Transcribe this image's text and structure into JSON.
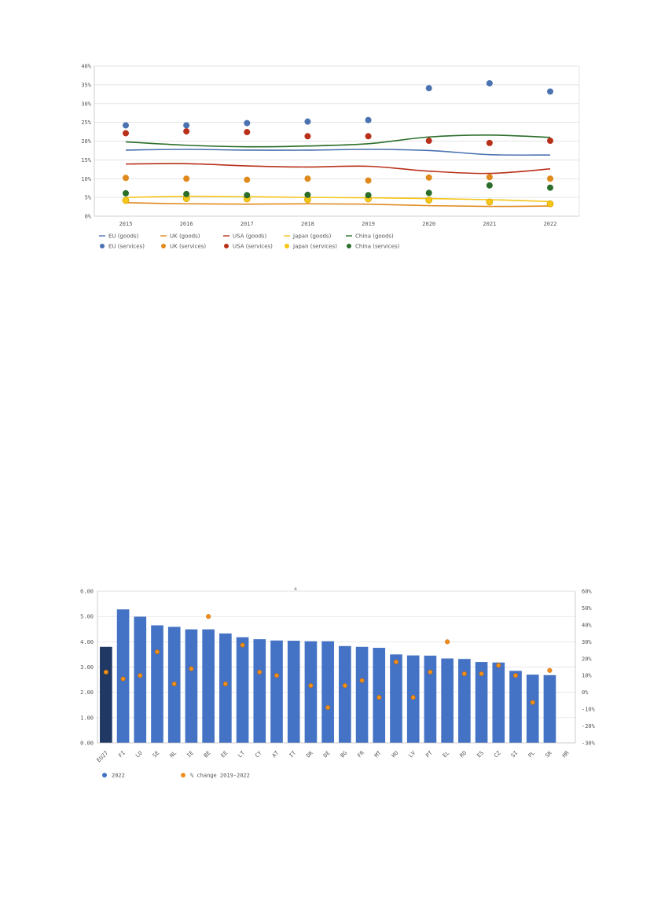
{
  "chart_data": [
    {
      "type": "line",
      "title": "",
      "xlabel": "",
      "ylabel": "",
      "categories": [
        "2015",
        "2016",
        "2017",
        "2018",
        "2019",
        "2020",
        "2021",
        "2022"
      ],
      "ylim": [
        0,
        40
      ],
      "yticks": [
        0,
        5,
        10,
        15,
        20,
        25,
        30,
        35,
        40
      ],
      "ytick_labels": [
        "0%",
        "5%",
        "10%",
        "15%",
        "20%",
        "25%",
        "30%",
        "35%",
        "40%"
      ],
      "grid": true,
      "legend_position": "bottom",
      "series": [
        {
          "name": "EU (goods)",
          "kind": "line",
          "color": "#4a72b0",
          "values": [
            17.6,
            17.8,
            17.6,
            17.6,
            17.8,
            17.5,
            16.4,
            16.3
          ]
        },
        {
          "name": "UK (goods)",
          "kind": "line",
          "color": "#e08a1e",
          "values": [
            3.6,
            3.3,
            3.2,
            3.3,
            3.2,
            2.8,
            2.6,
            2.7
          ]
        },
        {
          "name": "USA (goods)",
          "kind": "line",
          "color": "#b8301a",
          "values": [
            13.9,
            14.0,
            13.4,
            13.1,
            13.3,
            12.0,
            11.4,
            12.6
          ]
        },
        {
          "name": "Japan (goods)",
          "kind": "line",
          "color": "#f5c518",
          "values": [
            5.0,
            5.3,
            5.2,
            5.0,
            4.9,
            4.7,
            4.4,
            3.9
          ]
        },
        {
          "name": "China (goods)",
          "kind": "line",
          "color": "#2a6e2a",
          "values": [
            19.8,
            18.9,
            18.5,
            18.7,
            19.3,
            21.1,
            21.6,
            21.0
          ]
        },
        {
          "name": "EU (services)",
          "kind": "scatter",
          "color": "#4a72b0",
          "values": [
            24.2,
            24.2,
            24.8,
            25.2,
            25.6,
            34.1,
            35.4,
            33.2
          ]
        },
        {
          "name": "UK (services)",
          "kind": "scatter",
          "color": "#e08a1e",
          "values": [
            10.2,
            10.0,
            9.7,
            10.0,
            9.5,
            10.3,
            10.4,
            10.0
          ]
        },
        {
          "name": "USA (services)",
          "kind": "scatter",
          "color": "#b8301a",
          "values": [
            22.1,
            22.6,
            22.4,
            21.3,
            21.3,
            20.1,
            19.5,
            20.1
          ]
        },
        {
          "name": "Japan (services)",
          "kind": "scatter",
          "color": "#f5c518",
          "values": [
            4.2,
            4.7,
            4.6,
            4.4,
            4.6,
            4.3,
            3.8,
            3.3
          ]
        },
        {
          "name": "China (services)",
          "kind": "scatter",
          "color": "#2a6e2a",
          "values": [
            6.1,
            5.9,
            5.6,
            5.7,
            5.6,
            6.2,
            8.2,
            7.6
          ]
        }
      ]
    },
    {
      "type": "bar",
      "title": "",
      "xlabel": "",
      "ylabel": "",
      "categories": [
        "EU27",
        "FI",
        "LU",
        "SE",
        "NL",
        "IE",
        "BE",
        "EE",
        "LT",
        "CY",
        "AT",
        "IT",
        "DK",
        "DE",
        "BG",
        "FR",
        "MT",
        "HU",
        "LV",
        "PT",
        "EL",
        "RO",
        "ES",
        "CZ",
        "SI",
        "PL",
        "SK",
        "HR"
      ],
      "ylim": [
        0,
        6
      ],
      "yticks": [
        0,
        1,
        2,
        3,
        4,
        5,
        6
      ],
      "ytick_labels": [
        "0.00",
        "1.00",
        "2.00",
        "3.00",
        "4.00",
        "5.00",
        "6.00"
      ],
      "y2lim": [
        -30,
        60
      ],
      "y2ticks": [
        -30,
        -20,
        -10,
        0,
        10,
        20,
        30,
        40,
        50,
        60
      ],
      "y2tick_labels": [
        "-30%",
        "-20%",
        "-10%",
        "0%",
        "10%",
        "20%",
        "30%",
        "40%",
        "50%",
        "60%"
      ],
      "grid": true,
      "legend_position": "bottom-left",
      "series": [
        {
          "name": "2022",
          "kind": "bar",
          "color": "#4472c4",
          "highlight_color": "#1f3864",
          "values": [
            3.8,
            5.28,
            4.99,
            4.65,
            4.59,
            4.49,
            4.49,
            4.33,
            4.18,
            4.1,
            4.05,
            4.04,
            4.02,
            4.02,
            3.83,
            3.8,
            3.76,
            3.5,
            3.46,
            3.45,
            3.34,
            3.32,
            3.2,
            3.18,
            2.85,
            2.7,
            2.68,
            null
          ]
        },
        {
          "name": "% change 2019-2022",
          "kind": "scatter",
          "axis": "right",
          "color": "#f28e1c",
          "values": [
            12,
            8,
            10,
            24,
            5,
            14,
            45,
            5,
            28,
            12,
            10,
            null,
            4,
            -9,
            4,
            7,
            -3,
            18,
            -3,
            12,
            30,
            11,
            11,
            16,
            10,
            -6,
            13,
            null
          ]
        }
      ]
    }
  ],
  "toggle_glyph": "▲"
}
